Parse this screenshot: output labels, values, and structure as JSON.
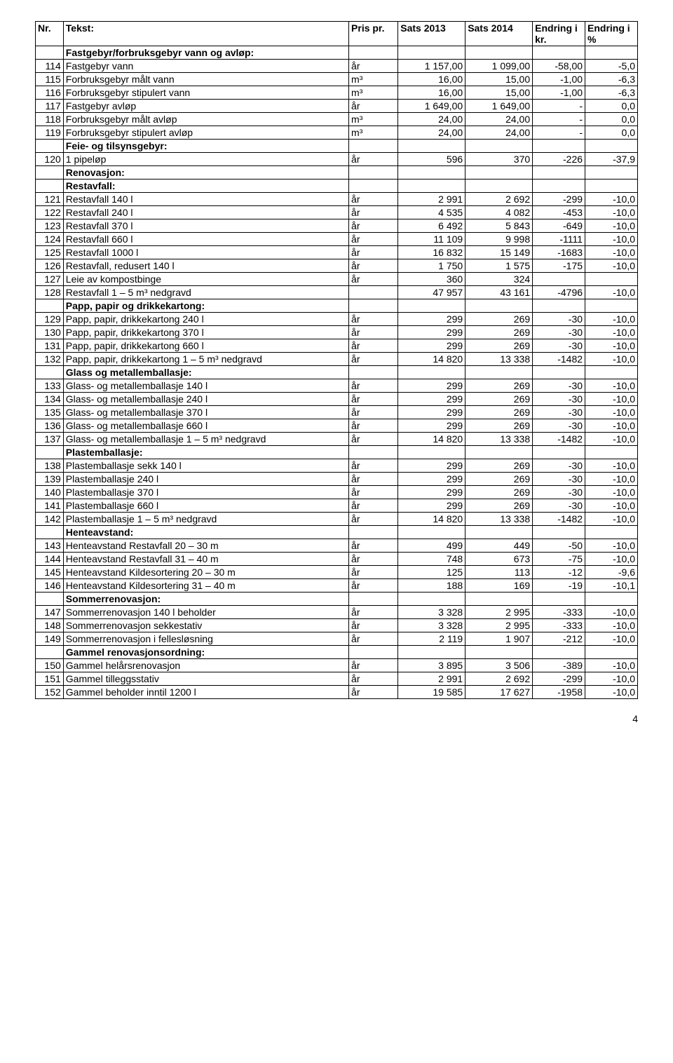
{
  "headers": {
    "nr": "Nr.",
    "tekst": "Tekst:",
    "pris": "Pris pr.",
    "s13": "Sats 2013",
    "s14": "Sats 2014",
    "ekr": "Endring i kr.",
    "epc": "Endring i %"
  },
  "page_number": "4",
  "rows": [
    {
      "type": "section",
      "t": "Fastgebyr/forbruksgebyr vann og avløp:"
    },
    {
      "n": "114",
      "t": "Fastgebyr vann",
      "p": "år",
      "s13": "1 157,00",
      "s14": "1 099,00",
      "ek": "-58,00",
      "ep": "-5,0"
    },
    {
      "n": "115",
      "t": "Forbruksgebyr målt vann",
      "p": "m³",
      "s13": "16,00",
      "s14": "15,00",
      "ek": "-1,00",
      "ep": "-6,3"
    },
    {
      "n": "116",
      "t": "Forbruksgebyr stipulert vann",
      "p": "m³",
      "s13": "16,00",
      "s14": "15,00",
      "ek": "-1,00",
      "ep": "-6,3"
    },
    {
      "n": "117",
      "t": "Fastgebyr avløp",
      "p": "år",
      "s13": "1 649,00",
      "s14": "1 649,00",
      "ek": "-",
      "ep": "0,0"
    },
    {
      "n": "118",
      "t": "Forbruksgebyr målt avløp",
      "p": "m³",
      "s13": "24,00",
      "s14": "24,00",
      "ek": "-",
      "ep": "0,0"
    },
    {
      "n": "119",
      "t": "Forbruksgebyr stipulert avløp",
      "p": "m³",
      "s13": "24,00",
      "s14": "24,00",
      "ek": "-",
      "ep": "0,0"
    },
    {
      "type": "section",
      "t": "Feie- og tilsynsgebyr:"
    },
    {
      "n": "120",
      "t": "1 pipeløp",
      "p": "år",
      "s13": "596",
      "s14": "370",
      "ek": "-226",
      "ep": "-37,9"
    },
    {
      "type": "section",
      "t": "Renovasjon:"
    },
    {
      "type": "section",
      "t": "Restavfall:"
    },
    {
      "n": "121",
      "t": "Restavfall 140 l",
      "p": "år",
      "s13": "2 991",
      "s14": "2 692",
      "ek": "-299",
      "ep": "-10,0"
    },
    {
      "n": "122",
      "t": "Restavfall 240 l",
      "p": "år",
      "s13": "4 535",
      "s14": "4 082",
      "ek": "-453",
      "ep": "-10,0"
    },
    {
      "n": "123",
      "t": "Restavfall 370 l",
      "p": "år",
      "s13": "6 492",
      "s14": "5 843",
      "ek": "-649",
      "ep": "-10,0"
    },
    {
      "n": "124",
      "t": "Restavfall 660 l",
      "p": "år",
      "s13": "11 109",
      "s14": "9 998",
      "ek": "-1111",
      "ep": "-10,0"
    },
    {
      "n": "125",
      "t": "Restavfall 1000 l",
      "p": "år",
      "s13": "16 832",
      "s14": "15 149",
      "ek": "-1683",
      "ep": "-10,0"
    },
    {
      "n": "126",
      "t": "Restavfall, redusert 140 l",
      "p": "år",
      "s13": "1 750",
      "s14": "1 575",
      "ek": "-175",
      "ep": "-10,0"
    },
    {
      "n": "127",
      "t": "Leie av kompostbinge",
      "p": "år",
      "s13": "360",
      "s14": "324",
      "ek": "",
      "ep": ""
    },
    {
      "n": "128",
      "t": "Restavfall 1 – 5 m³ nedgravd",
      "p": "",
      "s13": "47 957",
      "s14": "43 161",
      "ek": "-4796",
      "ep": "-10,0"
    },
    {
      "type": "section",
      "t": "Papp, papir og drikkekartong:"
    },
    {
      "n": "129",
      "t": "Papp, papir, drikkekartong 240 l",
      "p": "år",
      "s13": "299",
      "s14": "269",
      "ek": "-30",
      "ep": "-10,0"
    },
    {
      "n": "130",
      "t": "Papp, papir, drikkekartong 370 l",
      "p": "år",
      "s13": "299",
      "s14": "269",
      "ek": "-30",
      "ep": "-10,0"
    },
    {
      "n": "131",
      "t": "Papp, papir, drikkekartong 660 l",
      "p": "år",
      "s13": "299",
      "s14": "269",
      "ek": "-30",
      "ep": "-10,0"
    },
    {
      "n": "132",
      "t": "Papp, papir, drikkekartong 1 – 5 m³ nedgravd",
      "p": "år",
      "s13": "14 820",
      "s14": "13 338",
      "ek": "-1482",
      "ep": "-10,0"
    },
    {
      "type": "section",
      "t": "Glass og metallemballasje:"
    },
    {
      "n": "133",
      "t": "Glass- og metallemballasje 140 l",
      "p": "år",
      "s13": "299",
      "s14": "269",
      "ek": "-30",
      "ep": "-10,0"
    },
    {
      "n": "134",
      "t": "Glass- og metallemballasje 240 l",
      "p": "år",
      "s13": "299",
      "s14": "269",
      "ek": "-30",
      "ep": "-10,0"
    },
    {
      "n": "135",
      "t": "Glass- og metallemballasje 370 l",
      "p": "år",
      "s13": "299",
      "s14": "269",
      "ek": "-30",
      "ep": "-10,0"
    },
    {
      "n": "136",
      "t": "Glass- og metallemballasje 660 l",
      "p": "år",
      "s13": "299",
      "s14": "269",
      "ek": "-30",
      "ep": "-10,0"
    },
    {
      "n": "137",
      "t": "Glass- og metallemballasje 1 – 5 m³ nedgravd",
      "p": "år",
      "s13": "14 820",
      "s14": "13 338",
      "ek": "-1482",
      "ep": "-10,0"
    },
    {
      "type": "section",
      "t": "Plastemballasje:"
    },
    {
      "n": "138",
      "t": "Plastemballasje sekk 140 l",
      "p": "år",
      "s13": "299",
      "s14": "269",
      "ek": "-30",
      "ep": "-10,0"
    },
    {
      "n": "139",
      "t": "Plastemballasje 240 l",
      "p": "år",
      "s13": "299",
      "s14": "269",
      "ek": "-30",
      "ep": "-10,0"
    },
    {
      "n": "140",
      "t": "Plastemballasje 370 l",
      "p": "år",
      "s13": "299",
      "s14": "269",
      "ek": "-30",
      "ep": "-10,0"
    },
    {
      "n": "141",
      "t": "Plastemballasje 660 l",
      "p": "år",
      "s13": "299",
      "s14": "269",
      "ek": "-30",
      "ep": "-10,0"
    },
    {
      "n": "142",
      "t": "Plastemballasje 1 – 5 m³ nedgravd",
      "p": "år",
      "s13": "14 820",
      "s14": "13 338",
      "ek": "-1482",
      "ep": "-10,0"
    },
    {
      "type": "section",
      "t": "Henteavstand:"
    },
    {
      "n": "143",
      "t": "Henteavstand Restavfall 20 – 30 m",
      "p": "år",
      "s13": "499",
      "s14": "449",
      "ek": "-50",
      "ep": "-10,0"
    },
    {
      "n": "144",
      "t": "Henteavstand Restavfall 31 – 40 m",
      "p": "år",
      "s13": "748",
      "s14": "673",
      "ek": "-75",
      "ep": "-10,0"
    },
    {
      "n": "145",
      "t": "Henteavstand Kildesortering 20 – 30 m",
      "p": "år",
      "s13": "125",
      "s14": "113",
      "ek": "-12",
      "ep": "-9,6"
    },
    {
      "n": "146",
      "t": "Henteavstand Kildesortering 31 – 40 m",
      "p": "år",
      "s13": "188",
      "s14": "169",
      "ek": "-19",
      "ep": "-10,1"
    },
    {
      "type": "section",
      "t": "Sommerrenovasjon:"
    },
    {
      "n": "147",
      "t": "Sommerrenovasjon 140 l beholder",
      "p": "år",
      "s13": "3 328",
      "s14": "2 995",
      "ek": "-333",
      "ep": "-10,0"
    },
    {
      "n": "148",
      "t": "Sommerrenovasjon sekkestativ",
      "p": "år",
      "s13": "3 328",
      "s14": "2 995",
      "ek": "-333",
      "ep": "-10,0"
    },
    {
      "n": "149",
      "t": "Sommerrenovasjon i fellesløsning",
      "p": "år",
      "s13": "2 119",
      "s14": "1 907",
      "ek": "-212",
      "ep": "-10,0"
    },
    {
      "type": "section",
      "t": "Gammel renovasjonsordning:"
    },
    {
      "n": "150",
      "t": "Gammel helårsrenovasjon",
      "p": "år",
      "s13": "3 895",
      "s14": "3 506",
      "ek": "-389",
      "ep": "-10,0"
    },
    {
      "n": "151",
      "t": "Gammel tilleggsstativ",
      "p": "år",
      "s13": "2 991",
      "s14": "2 692",
      "ek": "-299",
      "ep": "-10,0"
    },
    {
      "n": "152",
      "t": "Gammel beholder inntil 1200 l",
      "p": "år",
      "s13": "19 585",
      "s14": "17 627",
      "ek": "-1958",
      "ep": "-10,0"
    }
  ]
}
